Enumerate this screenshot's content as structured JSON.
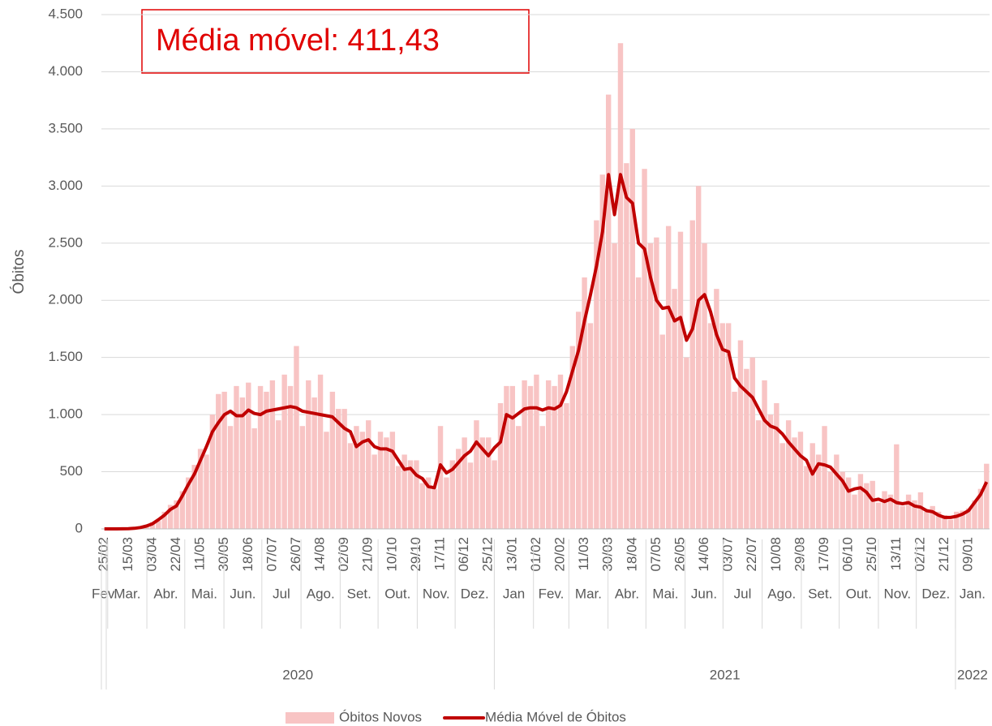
{
  "chart_data": {
    "type": "bar-line",
    "y_label": "Óbitos",
    "annotation": "Média móvel: 411,43",
    "ylim": [
      0,
      4500
    ],
    "yticks": [
      0,
      500,
      {
        "value": 1000,
        "label": "1.000"
      },
      {
        "value": 1500,
        "label": "1.500"
      },
      {
        "value": 2000,
        "label": "2.000"
      },
      {
        "value": 2500,
        "label": "2.500"
      },
      {
        "value": 3000,
        "label": "3.000"
      },
      {
        "value": 3500,
        "label": "3.500"
      },
      {
        "value": 4000,
        "label": "4.000"
      },
      {
        "value": 4500,
        "label": "4.500"
      }
    ],
    "grid": true,
    "legend": "bottom",
    "categories": [
      "25/02",
      null,
      null,
      null,
      "15/03",
      null,
      null,
      null,
      "03/04",
      null,
      null,
      null,
      "22/04",
      null,
      null,
      null,
      "11/05",
      null,
      null,
      null,
      "30/05",
      null,
      null,
      null,
      "18/06",
      null,
      null,
      null,
      "07/07",
      null,
      null,
      null,
      "26/07",
      null,
      null,
      null,
      "14/08",
      null,
      null,
      null,
      "02/09",
      null,
      null,
      null,
      "21/09",
      null,
      null,
      null,
      "10/10",
      null,
      null,
      null,
      "29/10",
      null,
      null,
      null,
      "17/11",
      null,
      null,
      null,
      "06/12",
      null,
      null,
      null,
      "25/12",
      null,
      null,
      null,
      "13/01",
      null,
      null,
      null,
      "01/02",
      null,
      null,
      null,
      "20/02",
      null,
      null,
      null,
      "11/03",
      null,
      null,
      null,
      "30/03",
      null,
      null,
      null,
      "18/04",
      null,
      null,
      null,
      "07/05",
      null,
      null,
      null,
      "26/05",
      null,
      null,
      null,
      "14/06",
      null,
      null,
      null,
      "03/07",
      null,
      null,
      null,
      "22/07",
      null,
      null,
      null,
      "10/08",
      null,
      null,
      null,
      "29/08",
      null,
      null,
      null,
      "17/09",
      null,
      null,
      null,
      "06/10",
      null,
      null,
      null,
      "25/10",
      null,
      null,
      null,
      "13/11",
      null,
      null,
      null,
      "02/12",
      null,
      null,
      null,
      "21/12",
      null,
      null,
      null,
      "09/01",
      null,
      null,
      null
    ],
    "months": [
      "Fev.",
      "Mar.",
      "Abr.",
      "Mai.",
      "Jun.",
      "Jul",
      "Ago.",
      "Set.",
      "Out.",
      "Nov.",
      "Dez.",
      "Jan",
      "Fev.",
      "Mar.",
      "Abr.",
      "Mai.",
      "Jun.",
      "Jul",
      "Ago.",
      "Set.",
      "Out.",
      "Nov.",
      "Dez.",
      "Jan."
    ],
    "years": [
      "2020",
      "2021",
      "2022"
    ],
    "series": [
      {
        "name": "Óbitos Novos",
        "kind": "bar",
        "color": "#f8c4c4",
        "values": [
          0,
          0,
          1,
          2,
          3,
          6,
          15,
          35,
          60,
          70,
          150,
          210,
          250,
          330,
          450,
          560,
          700,
          650,
          1000,
          1180,
          1200,
          900,
          1250,
          1150,
          1280,
          880,
          1250,
          1200,
          1300,
          950,
          1350,
          1250,
          1600,
          900,
          1300,
          1150,
          1350,
          850,
          1200,
          1050,
          1050,
          750,
          900,
          850,
          950,
          650,
          850,
          800,
          850,
          550,
          650,
          600,
          600,
          400,
          450,
          350,
          900,
          450,
          600,
          700,
          800,
          580,
          950,
          800,
          800,
          600,
          1100,
          1250,
          1250,
          900,
          1300,
          1250,
          1350,
          900,
          1300,
          1250,
          1350,
          1100,
          1600,
          1900,
          2200,
          1800,
          2700,
          3100,
          3800,
          2500,
          4250,
          3200,
          3500,
          2200,
          3150,
          2500,
          2550,
          1700,
          2650,
          2100,
          2600,
          1500,
          2700,
          3000,
          2500,
          1800,
          2100,
          1800,
          1800,
          1200,
          1650,
          1400,
          1500,
          950,
          1300,
          1000,
          1100,
          750,
          950,
          800,
          850,
          550,
          750,
          650,
          900,
          500,
          650,
          500,
          450,
          300,
          480,
          400,
          420,
          230,
          330,
          300,
          740,
          200,
          300,
          250,
          320,
          150,
          200,
          150,
          120,
          80,
          150,
          160,
          180,
          250,
          350,
          570
        ]
      },
      {
        "name": "Média Móvel de Óbitos",
        "kind": "line",
        "color": "#c00000",
        "values": [
          0,
          0,
          0,
          1,
          2,
          5,
          12,
          25,
          45,
          80,
          120,
          170,
          200,
          290,
          390,
          480,
          600,
          720,
          850,
          930,
          1000,
          1030,
          990,
          990,
          1040,
          1010,
          1000,
          1030,
          1040,
          1050,
          1060,
          1070,
          1060,
          1030,
          1020,
          1010,
          1000,
          990,
          980,
          930,
          880,
          850,
          720,
          760,
          780,
          720,
          700,
          700,
          680,
          600,
          520,
          530,
          470,
          440,
          370,
          360,
          560,
          490,
          520,
          580,
          640,
          680,
          760,
          700,
          640,
          710,
          760,
          1000,
          970,
          1010,
          1050,
          1060,
          1060,
          1040,
          1060,
          1050,
          1080,
          1200,
          1380,
          1560,
          1820,
          2050,
          2300,
          2600,
          3100,
          2750,
          3100,
          2900,
          2850,
          2500,
          2450,
          2200,
          2000,
          1930,
          1940,
          1820,
          1850,
          1650,
          1750,
          2000,
          2050,
          1900,
          1700,
          1570,
          1550,
          1320,
          1250,
          1200,
          1150,
          1050,
          950,
          900,
          880,
          830,
          760,
          700,
          640,
          600,
          480,
          570,
          560,
          540,
          480,
          420,
          330,
          350,
          360,
          320,
          250,
          260,
          240,
          260,
          230,
          220,
          230,
          200,
          190,
          160,
          150,
          120,
          100,
          100,
          110,
          130,
          160,
          230,
          300,
          411
        ]
      }
    ]
  }
}
